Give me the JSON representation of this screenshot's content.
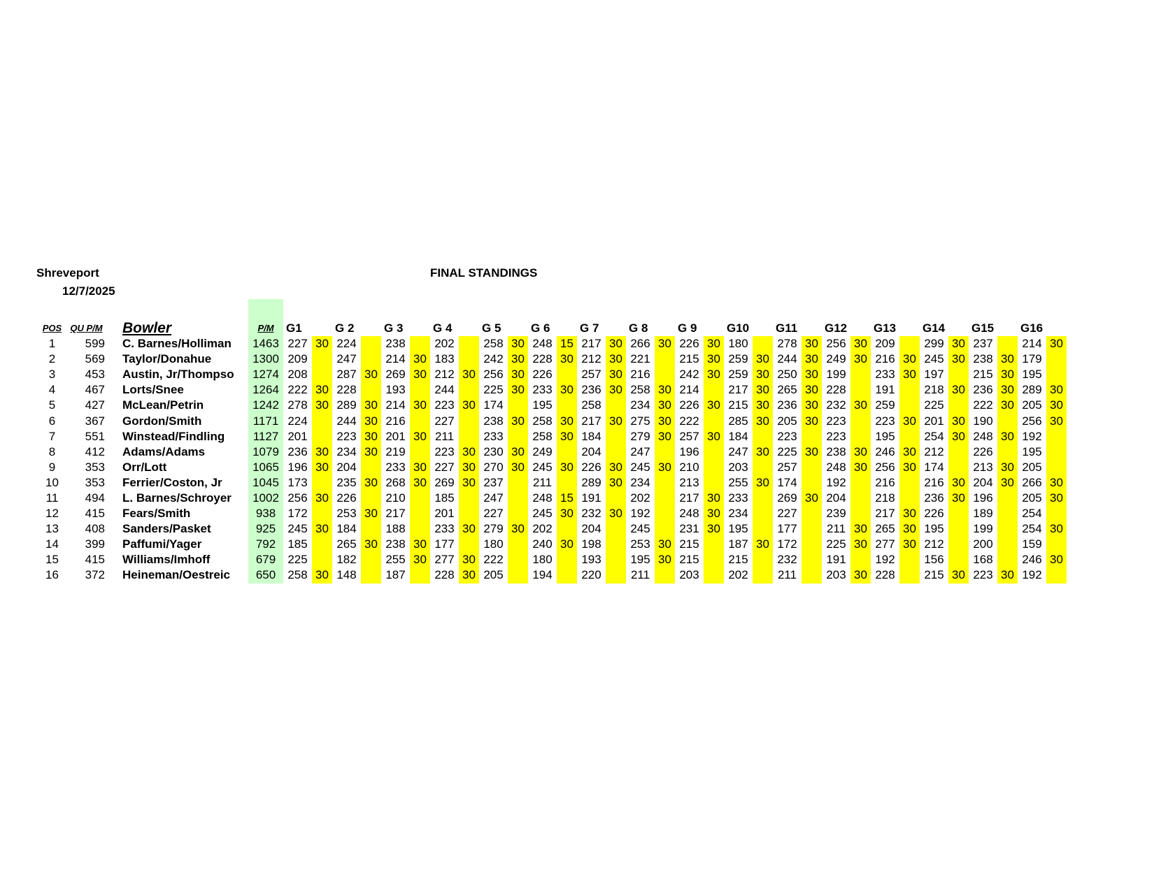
{
  "header": {
    "location": "Shreveport",
    "date": "12/7/2025",
    "title": "FINAL STANDINGS"
  },
  "colors": {
    "pm_column": "#ccffcc",
    "bonus_column": "#ffff00"
  },
  "columns": {
    "pos": "POS",
    "qu_pm": "QU P/M",
    "bowler": "Bowler",
    "pm": "P/M",
    "games": [
      "G1",
      "G 2",
      "G 3",
      "G 4",
      "G 5",
      "G 6",
      "G 7",
      "G 8",
      "G 9",
      "G10",
      "G11",
      "G12",
      "G13",
      "G14",
      "G15",
      "G16"
    ]
  },
  "rows": [
    {
      "pos": "1",
      "qu_pm": "599",
      "bowler": "C. Barnes/Holliman",
      "pm": "1463",
      "scores": [
        "227",
        "224",
        "238",
        "202",
        "258",
        "248",
        "217",
        "266",
        "226",
        "180",
        "278",
        "256",
        "209",
        "299",
        "237",
        "214"
      ],
      "bonus": [
        "30",
        "",
        "",
        "",
        "30",
        "15",
        "30",
        "30",
        "30",
        "",
        "30",
        "30",
        "",
        "30",
        "",
        "30"
      ]
    },
    {
      "pos": "2",
      "qu_pm": "569",
      "bowler": "Taylor/Donahue",
      "pm": "1300",
      "scores": [
        "209",
        "247",
        "214",
        "183",
        "242",
        "228",
        "212",
        "221",
        "215",
        "259",
        "244",
        "249",
        "216",
        "245",
        "238",
        "179"
      ],
      "bonus": [
        "",
        "",
        "30",
        "",
        "30",
        "30",
        "30",
        "",
        "30",
        "30",
        "30",
        "30",
        "30",
        "30",
        "30",
        ""
      ]
    },
    {
      "pos": "3",
      "qu_pm": "453",
      "bowler": "Austin, Jr/Thompso",
      "pm": "1274",
      "scores": [
        "208",
        "287",
        "269",
        "212",
        "256",
        "226",
        "257",
        "216",
        "242",
        "259",
        "250",
        "199",
        "233",
        "197",
        "215",
        "195"
      ],
      "bonus": [
        "",
        "30",
        "30",
        "30",
        "30",
        "",
        "30",
        "",
        "30",
        "30",
        "30",
        "",
        "30",
        "",
        "30",
        ""
      ]
    },
    {
      "pos": "4",
      "qu_pm": "467",
      "bowler": "Lorts/Snee",
      "pm": "1264",
      "scores": [
        "222",
        "228",
        "193",
        "244",
        "225",
        "233",
        "236",
        "258",
        "214",
        "217",
        "265",
        "228",
        "191",
        "218",
        "236",
        "289"
      ],
      "bonus": [
        "30",
        "",
        "",
        "",
        "30",
        "30",
        "30",
        "30",
        "",
        "30",
        "30",
        "",
        "",
        "30",
        "30",
        "30"
      ]
    },
    {
      "pos": "5",
      "qu_pm": "427",
      "bowler": "McLean/Petrin",
      "pm": "1242",
      "scores": [
        "278",
        "289",
        "214",
        "223",
        "174",
        "195",
        "258",
        "234",
        "226",
        "215",
        "236",
        "232",
        "259",
        "225",
        "222",
        "205"
      ],
      "bonus": [
        "30",
        "30",
        "30",
        "30",
        "",
        "",
        "",
        "30",
        "30",
        "30",
        "30",
        "30",
        "",
        "",
        "30",
        "30"
      ]
    },
    {
      "pos": "6",
      "qu_pm": "367",
      "bowler": "Gordon/Smith",
      "pm": "1171",
      "scores": [
        "224",
        "244",
        "216",
        "227",
        "238",
        "258",
        "217",
        "275",
        "222",
        "285",
        "205",
        "223",
        "223",
        "201",
        "190",
        "256"
      ],
      "bonus": [
        "",
        "30",
        "",
        "",
        "30",
        "30",
        "30",
        "30",
        "",
        "30",
        "30",
        "",
        "30",
        "30",
        "",
        "30"
      ]
    },
    {
      "pos": "7",
      "qu_pm": "551",
      "bowler": "Winstead/Findling",
      "pm": "1127",
      "scores": [
        "201",
        "223",
        "201",
        "211",
        "233",
        "258",
        "184",
        "279",
        "257",
        "184",
        "223",
        "223",
        "195",
        "254",
        "248",
        "192"
      ],
      "bonus": [
        "",
        "30",
        "30",
        "",
        "",
        "30",
        "",
        "30",
        "30",
        "",
        "",
        "",
        "",
        "30",
        "30",
        ""
      ]
    },
    {
      "pos": "8",
      "qu_pm": "412",
      "bowler": "Adams/Adams",
      "pm": "1079",
      "scores": [
        "236",
        "234",
        "219",
        "223",
        "230",
        "249",
        "204",
        "247",
        "196",
        "247",
        "225",
        "238",
        "246",
        "212",
        "226",
        "195"
      ],
      "bonus": [
        "30",
        "30",
        "",
        "30",
        "30",
        "",
        "",
        "",
        "",
        "30",
        "30",
        "30",
        "30",
        "",
        "",
        ""
      ]
    },
    {
      "pos": "9",
      "qu_pm": "353",
      "bowler": "Orr/Lott",
      "pm": "1065",
      "scores": [
        "196",
        "204",
        "233",
        "227",
        "270",
        "245",
        "226",
        "245",
        "210",
        "203",
        "257",
        "248",
        "256",
        "174",
        "213",
        "205"
      ],
      "bonus": [
        "30",
        "",
        "30",
        "30",
        "30",
        "30",
        "30",
        "30",
        "",
        "",
        "",
        "30",
        "30",
        "",
        "30",
        ""
      ]
    },
    {
      "pos": "10",
      "qu_pm": "353",
      "bowler": "Ferrier/Coston, Jr",
      "pm": "1045",
      "scores": [
        "173",
        "235",
        "268",
        "269",
        "237",
        "211",
        "289",
        "234",
        "213",
        "255",
        "174",
        "192",
        "216",
        "216",
        "204",
        "266"
      ],
      "bonus": [
        "",
        "30",
        "30",
        "30",
        "",
        "",
        "30",
        "",
        "",
        "30",
        "",
        "",
        "",
        "30",
        "30",
        "30"
      ]
    },
    {
      "pos": "11",
      "qu_pm": "494",
      "bowler": "L. Barnes/Schroyer",
      "pm": "1002",
      "scores": [
        "256",
        "226",
        "210",
        "185",
        "247",
        "248",
        "191",
        "202",
        "217",
        "233",
        "269",
        "204",
        "218",
        "236",
        "196",
        "205"
      ],
      "bonus": [
        "30",
        "",
        "",
        "",
        "",
        "15",
        "",
        "",
        "30",
        "",
        "30",
        "",
        "",
        "30",
        "",
        "30"
      ]
    },
    {
      "pos": "12",
      "qu_pm": "415",
      "bowler": "Fears/Smith",
      "pm": "938",
      "scores": [
        "172",
        "253",
        "217",
        "201",
        "227",
        "245",
        "232",
        "192",
        "248",
        "234",
        "227",
        "239",
        "217",
        "226",
        "189",
        "254"
      ],
      "bonus": [
        "",
        "30",
        "",
        "",
        "",
        "30",
        "30",
        "",
        "30",
        "",
        "",
        "",
        "30",
        "",
        "",
        ""
      ]
    },
    {
      "pos": "13",
      "qu_pm": "408",
      "bowler": "Sanders/Pasket",
      "pm": "925",
      "scores": [
        "245",
        "184",
        "188",
        "233",
        "279",
        "202",
        "204",
        "245",
        "231",
        "195",
        "177",
        "211",
        "265",
        "195",
        "199",
        "254"
      ],
      "bonus": [
        "30",
        "",
        "",
        "30",
        "30",
        "",
        "",
        "",
        "30",
        "",
        "",
        "30",
        "30",
        "",
        "",
        "30"
      ]
    },
    {
      "pos": "14",
      "qu_pm": "399",
      "bowler": "Paffumi/Yager",
      "pm": "792",
      "scores": [
        "185",
        "265",
        "238",
        "177",
        "180",
        "240",
        "198",
        "253",
        "215",
        "187",
        "172",
        "225",
        "277",
        "212",
        "200",
        "159"
      ],
      "bonus": [
        "",
        "30",
        "30",
        "",
        "",
        "30",
        "",
        "30",
        "",
        "30",
        "",
        "30",
        "30",
        "",
        "",
        ""
      ]
    },
    {
      "pos": "15",
      "qu_pm": "415",
      "bowler": "Williams/Imhoff",
      "pm": "679",
      "scores": [
        "225",
        "182",
        "255",
        "277",
        "222",
        "180",
        "193",
        "195",
        "215",
        "215",
        "232",
        "191",
        "192",
        "156",
        "168",
        "246"
      ],
      "bonus": [
        "",
        "",
        "30",
        "30",
        "",
        "",
        "",
        "30",
        "",
        "",
        "",
        "",
        "",
        "",
        "",
        "30"
      ]
    },
    {
      "pos": "16",
      "qu_pm": "372",
      "bowler": "Heineman/Oestreic",
      "pm": "650",
      "scores": [
        "258",
        "148",
        "187",
        "228",
        "205",
        "194",
        "220",
        "211",
        "203",
        "202",
        "211",
        "203",
        "228",
        "215",
        "223",
        "192"
      ],
      "bonus": [
        "30",
        "",
        "",
        "30",
        "",
        "",
        "",
        "",
        "",
        "",
        "",
        "30",
        "",
        "30",
        "30",
        ""
      ]
    }
  ]
}
